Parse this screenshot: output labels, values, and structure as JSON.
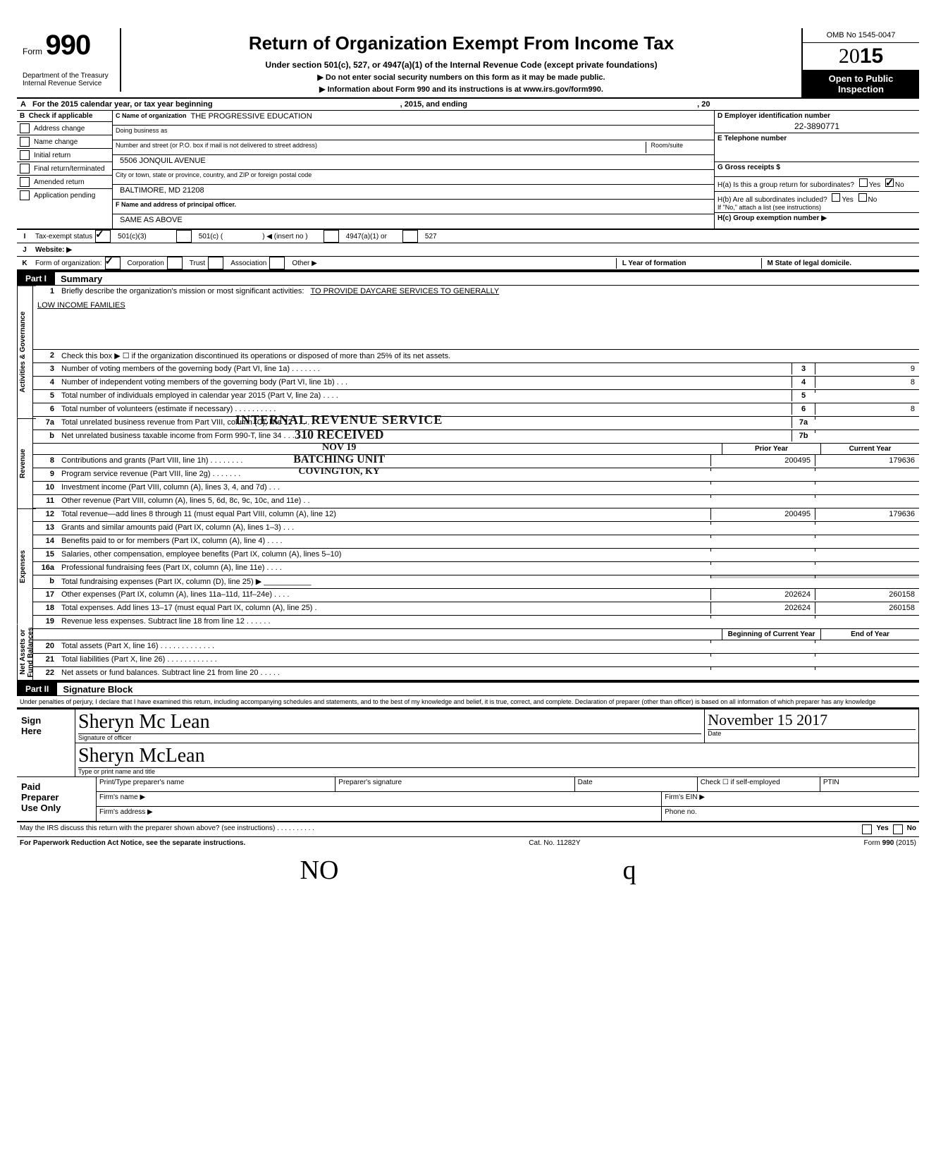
{
  "header": {
    "form_word": "Form",
    "form_number": "990",
    "department": "Department of the Treasury\nInternal Revenue Service",
    "main_title": "Return of Organization Exempt From Income Tax",
    "subtitle": "Under section 501(c), 527, or 4947(a)(1) of the Internal Revenue Code (except private foundations)",
    "sub2": "▶ Do not enter social security numbers on this form as it may be made public.",
    "sub3": "▶ Information about Form 990 and its instructions is at www.irs.gov/form990.",
    "omb": "OMB No 1545-0047",
    "year_prefix": "20",
    "year_bold": "15",
    "open1": "Open to Public",
    "open2": "Inspection"
  },
  "rowA": {
    "label": "A",
    "text": "For the 2015 calendar year, or tax year beginning",
    "mid": ", 2015, and ending",
    "end": ", 20"
  },
  "colB": {
    "label": "B",
    "head": "Check if applicable",
    "items": [
      "Address change",
      "Name change",
      "Initial return",
      "Final return/terminated",
      "Amended return",
      "Application pending"
    ]
  },
  "colC": {
    "name_label": "C Name of organization",
    "name": "THE PROGRESSIVE EDUCATION",
    "dba_label": "Doing business as",
    "dba": "",
    "street_label": "Number and street (or P.O. box if mail is not delivered to street address)",
    "room_label": "Room/suite",
    "street": "5506 JONQUIL AVENUE",
    "city_label": "City or town, state or province, country, and ZIP or foreign postal code",
    "city": "BALTIMORE, MD 21208",
    "officer_label": "F Name and address of principal officer.",
    "officer": "SAME AS ABOVE"
  },
  "colD": {
    "ein_label": "D Employer identification number",
    "ein": "22-3890771",
    "tel_label": "E Telephone number",
    "tel": "",
    "gross_label": "G Gross receipts $",
    "ha": "H(a) Is this a group return for subordinates?",
    "ha_yes": "Yes",
    "ha_no": "No",
    "hb": "H(b) Are all subordinates included?",
    "hb_note": "If \"No,\" attach a list (see instructions)",
    "hc": "H(c) Group exemption number ▶"
  },
  "taxStatus": {
    "label": "I",
    "text": "Tax-exempt status",
    "opt1": "501(c)(3)",
    "opt2": "501(c) (",
    "opt2b": ") ◀ (insert no )",
    "opt3": "4947(a)(1) or",
    "opt4": "527"
  },
  "website": {
    "label": "J",
    "text": "Website: ▶"
  },
  "formOrg": {
    "label": "K",
    "text": "Form of organization:",
    "corp": "Corporation",
    "trust": "Trust",
    "assoc": "Association",
    "other": "Other ▶",
    "l_year": "L Year of formation",
    "m_state": "M State of legal domicile."
  },
  "part1": {
    "tag": "Part I",
    "title": "Summary"
  },
  "summary": {
    "side1": "Activities & Governance",
    "side2": "Revenue",
    "side3": "Expenses",
    "side4": "Net Assets or Fund Balances",
    "line1_num": "1",
    "line1": "Briefly describe the organization's mission or most significant activities:",
    "line1_val": "TO PROVIDE DAYCARE SERVICES TO GENERALLY",
    "line1_val2": "LOW INCOME FAMILIES",
    "line2_num": "2",
    "line2": "Check this box ▶ ☐ if the organization discontinued its operations or disposed of more than 25% of its net assets.",
    "lines_gov": [
      {
        "num": "3",
        "desc": "Number of voting members of the governing body (Part VI, line 1a) .   .   .   .   .   .   .",
        "key": "3",
        "val": "9"
      },
      {
        "num": "4",
        "desc": "Number of independent voting members of the governing body (Part VI, line 1b)   .   .   .",
        "key": "4",
        "val": "8"
      },
      {
        "num": "5",
        "desc": "Total number of individuals employed in calendar year 2015 (Part V, line 2a)   .   .   .   .",
        "key": "5",
        "val": ""
      },
      {
        "num": "6",
        "desc": "Total number of volunteers (estimate if necessary)   .   .   .   .   .   .   .   .   .   .",
        "key": "6",
        "val": "8"
      },
      {
        "num": "7a",
        "desc": "Total unrelated business revenue from Part VIII, column (C), line 12   .   .   .   .   .",
        "key": "7a",
        "val": ""
      },
      {
        "num": "b",
        "desc": "Net unrelated business taxable income from Form 990-T, line 34   .   .   .   .   .   .",
        "key": "7b",
        "val": ""
      }
    ],
    "col_h1": "Prior Year",
    "col_h2": "Current Year",
    "lines_rev": [
      {
        "num": "8",
        "desc": "Contributions and grants (Part VIII, line 1h) .   .   .   .   .   .   .   .",
        "v1": "200495",
        "v2": "179636"
      },
      {
        "num": "9",
        "desc": "Program service revenue (Part VIII, line 2g)   .   .   .   .   .   .   .",
        "v1": "",
        "v2": ""
      },
      {
        "num": "10",
        "desc": "Investment income (Part VIII, column (A), lines 3, 4, and 7d)   .   .   .",
        "v1": "",
        "v2": ""
      },
      {
        "num": "11",
        "desc": "Other revenue (Part VIII, column (A), lines 5, 6d, 8c, 9c, 10c, and 11e)   .   .",
        "v1": "",
        "v2": ""
      },
      {
        "num": "12",
        "desc": "Total revenue—add lines 8 through 11 (must equal Part VIII, column (A), line 12)",
        "v1": "200495",
        "v2": "179636"
      }
    ],
    "lines_exp": [
      {
        "num": "13",
        "desc": "Grants and similar amounts paid (Part IX, column (A), lines 1–3)   .   .   .",
        "v1": "",
        "v2": ""
      },
      {
        "num": "14",
        "desc": "Benefits paid to or for members (Part IX, column (A), line 4)   .   .   .   .",
        "v1": "",
        "v2": ""
      },
      {
        "num": "15",
        "desc": "Salaries, other compensation, employee benefits (Part IX, column (A), lines 5–10)",
        "v1": "",
        "v2": ""
      },
      {
        "num": "16a",
        "desc": "Professional fundraising fees (Part IX, column (A), line 11e)   .   .   .   .",
        "v1": "",
        "v2": ""
      },
      {
        "num": "b",
        "desc": "Total fundraising expenses (Part IX, column (D), line 25) ▶ ___________",
        "v1g": true,
        "v1": "",
        "v2": ""
      },
      {
        "num": "17",
        "desc": "Other expenses (Part IX, column (A), lines 11a–11d, 11f–24e)   .   .   .   .",
        "v1": "202624",
        "v2": "260158"
      },
      {
        "num": "18",
        "desc": "Total expenses. Add lines 13–17 (must equal Part IX, column (A), line 25)   .",
        "v1": "202624",
        "v2": "260158"
      },
      {
        "num": "19",
        "desc": "Revenue less expenses. Subtract line 18 from line 12   .   .   .   .   .   .",
        "v1": "",
        "v2": ""
      }
    ],
    "col_h3": "Beginning of Current Year",
    "col_h4": "End of Year",
    "lines_net": [
      {
        "num": "20",
        "desc": "Total assets (Part X, line 16)   .   .   .   .   .   .   .   .   .   .   .   .   .",
        "v1": "",
        "v2": ""
      },
      {
        "num": "21",
        "desc": "Total liabilities (Part X, line 26)   .   .   .   .   .   .   .   .   .   .   .   .",
        "v1": "",
        "v2": ""
      },
      {
        "num": "22",
        "desc": "Net assets or fund balances. Subtract line 21 from line 20   .   .   .   .   .",
        "v1": "",
        "v2": ""
      }
    ]
  },
  "stamps": {
    "irs1": "INTERNAL REVENUE SERVICE",
    "irs2": "310 RECEIVED",
    "irs3": "NOV 19 ",
    "irs4": "BATCHING UNIT",
    "irs5": "COVINGTON, KY"
  },
  "part2": {
    "tag": "Part II",
    "title": "Signature Block"
  },
  "declaration": "Under penalties of perjury, I declare that I have examined this return, including accompanying schedules and statements, and to the best of my knowledge and belief, it is true, correct, and complete. Declaration of preparer (other than officer) is based on all information of which preparer has any knowledge",
  "sign": {
    "left1": "Sign",
    "left2": "Here",
    "sig_officer": "Sheryn Mc Lean",
    "sig_label": "Signature of officer",
    "date_label": "Date",
    "date_val": "November 15 2017",
    "print_name": "Sheryn McLean",
    "print_label": "Type or print name and title"
  },
  "paid": {
    "left1": "Paid",
    "left2": "Preparer",
    "left3": "Use Only",
    "h1": "Print/Type preparer's name",
    "h2": "Preparer's signature",
    "h3": "Date",
    "h4": "Check ☐ if self-employed",
    "h5": "PTIN",
    "firm_name": "Firm's name    ▶",
    "firm_ein": "Firm's EIN ▶",
    "firm_addr": "Firm's address ▶",
    "phone": "Phone no."
  },
  "irs_discuss": "May the IRS discuss this return with the preparer shown above? (see instructions)   .   .   .   .   .   .   .   .   .   .",
  "irs_yes": "Yes",
  "irs_no": "No",
  "paperwork": "For Paperwork Reduction Act Notice, see the separate instructions.",
  "cat": "Cat. No. 11282Y",
  "form_footer": "Form 990 (2015)",
  "initials": {
    "a": "NO",
    "b": "q"
  }
}
